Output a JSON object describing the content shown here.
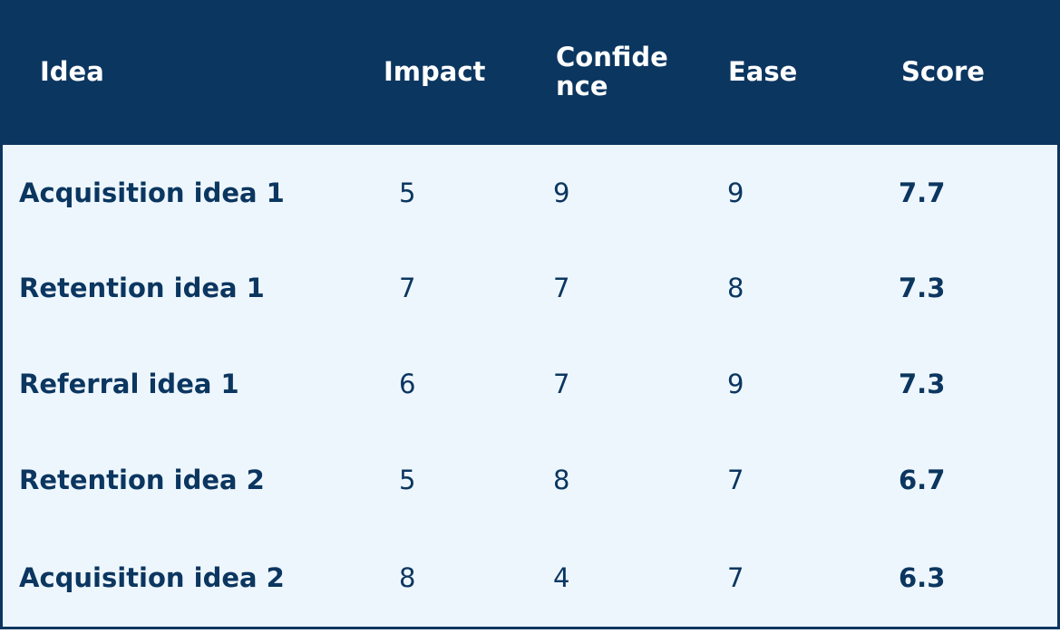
{
  "table": {
    "header": [
      "Idea",
      "Impact",
      "Confidence",
      "Ease",
      "Score"
    ],
    "rows": [
      [
        "Acquisition idea 1",
        5,
        9,
        9,
        7.7
      ],
      [
        "Retention idea 1",
        7,
        7,
        8,
        7.3
      ],
      [
        "Referral idea 1",
        6,
        7,
        9,
        7.3
      ],
      [
        "Retention idea 2",
        5,
        8,
        7,
        6.7
      ],
      [
        "Acquisition idea 2",
        8,
        4,
        7,
        6.3
      ]
    ]
  }
}
